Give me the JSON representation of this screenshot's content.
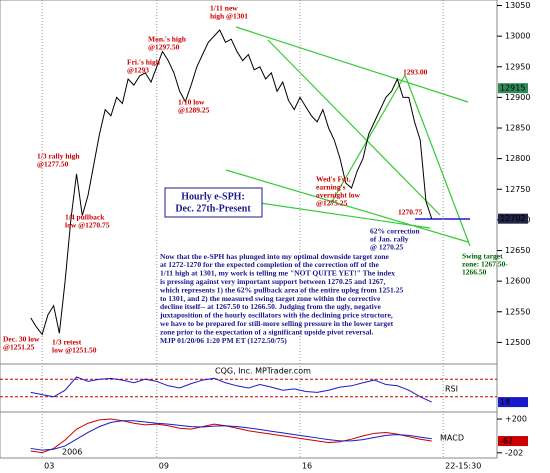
{
  "chart_data": [
    {
      "type": "line",
      "title": [
        "Hourly e-SPH:",
        "Dec. 27th-Present"
      ],
      "xlim": [
        -1,
        80
      ],
      "xticks": [
        {
          "value": 2,
          "label": "03"
        },
        {
          "value": 22,
          "label": "09"
        },
        {
          "value": 47,
          "label": "16"
        },
        {
          "value": 72,
          "label": "22-15:30"
        }
      ],
      "year_label": "2006",
      "ylim": [
        12468,
        13059
      ],
      "yticks": [
        12500,
        12550,
        12600,
        12650,
        12700,
        12750,
        12800,
        12850,
        12900,
        12950,
        13000,
        13050
      ],
      "series": [
        {
          "name": "e-SPH",
          "color": "#000000",
          "values": [
            12540,
            12525,
            12513,
            12545,
            12560,
            12515,
            12600,
            12700,
            12775,
            12707,
            12740,
            12790,
            12840,
            12880,
            12870,
            12900,
            12890,
            12930,
            12920,
            12935,
            12940,
            12925,
            12950,
            12975,
            12960,
            12940,
            12910,
            12893,
            12920,
            12950,
            12970,
            12990,
            13000,
            13010,
            12990,
            12995,
            12975,
            12960,
            12970,
            12945,
            12950,
            12930,
            12940,
            12910,
            12925,
            12895,
            12880,
            12900,
            12885,
            12870,
            12860,
            12880,
            12850,
            12830,
            12800,
            12760,
            12752,
            12780,
            12800,
            12840,
            12860,
            12880,
            12900,
            12910,
            12930,
            12900,
            12900,
            12860,
            12830,
            12730,
            12702
          ]
        }
      ],
      "price_boxes": [
        {
          "value": 12915,
          "color": "#2e8b57"
        }
      ],
      "annotations": [
        {
          "lines": [
            "1/11 new",
            "high @1301"
          ],
          "color": "#cc0000"
        },
        {
          "lines": [
            "Mon.'s high",
            "@1297.50"
          ],
          "color": "#cc0000"
        },
        {
          "lines": [
            "Fri.'s high",
            "@1293"
          ],
          "color": "#cc0000"
        },
        {
          "lines": [
            "1/10 low",
            "@1289.25"
          ],
          "color": "#cc0000"
        },
        {
          "lines": [
            "1/3 rally high",
            "@1277.50"
          ],
          "color": "#cc0000"
        },
        {
          "lines": [
            "1/4 pullback",
            "low @1270.75"
          ],
          "color": "#cc0000"
        },
        {
          "lines": [
            "Dec. 30 low",
            "@1251.25"
          ],
          "color": "#cc0000"
        },
        {
          "lines": [
            "1/3 retest",
            "low @1251.50"
          ],
          "color": "#cc0000"
        },
        {
          "lines": [
            "Wed's Fut.",
            "earning's",
            "overnight low",
            "@1275.25"
          ],
          "color": "#cc0000"
        },
        {
          "lines": [
            "1293.00"
          ],
          "color": "#cc0000"
        },
        {
          "lines": [
            "1270.75"
          ],
          "color": "#cc0000"
        },
        {
          "lines": [
            "62% correction",
            "of Jan. rally",
            "@ 1270.25"
          ],
          "color": "#1a1a8c"
        },
        {
          "lines": [
            "Swing target",
            "zone: 1267.50-",
            "1266.50"
          ],
          "color": "#006400"
        }
      ],
      "commentary": [
        "Now that the e-SPH has plunged into my optimal downside target zone",
        "at 1272-1270 for the expected completion of the correction off of the",
        "1/11 high at 1301, my work is telling me \"NOT QUITE YET!\"  The index",
        "is pressing against very important support between 1270.25 and 1267,",
        "which represents 1) the 62% pullback area of the entire upleg from 1251.25",
        "to 1301, and 2) the measured swing target zone within the corrective",
        "decline itself-- at 1267.50 to 1266.50. Judging from the ugly, negative",
        "juxtaposition of the hourly oscillators with the declining price structure,",
        "we have to be prepared for still-more selling pressure in the lower target",
        "zone prior to the expectation of a significant upside pivot reversal.",
        "MJP  01/20/06 1:20 PM ET  (1272.50/75)"
      ]
    },
    {
      "type": "line",
      "title": "RSI",
      "source": "CQG, Inc. MPTrader.com",
      "ylim": [
        0,
        100
      ],
      "levels": [
        30,
        70
      ],
      "x": [
        0,
        2,
        4,
        6,
        8,
        10,
        12,
        14,
        16,
        18,
        20,
        22,
        24,
        26,
        28,
        30,
        32,
        34,
        36,
        38,
        40,
        42,
        44,
        46,
        48,
        50,
        52,
        54,
        56,
        58,
        60,
        62,
        64,
        66,
        68,
        70
      ],
      "series": [
        {
          "name": "RSI",
          "color": "#1a1acc",
          "values": [
            40,
            35,
            30,
            45,
            75,
            65,
            70,
            72,
            68,
            62,
            70,
            65,
            55,
            50,
            60,
            68,
            72,
            62,
            55,
            50,
            58,
            52,
            45,
            48,
            42,
            40,
            45,
            52,
            55,
            62,
            68,
            58,
            55,
            45,
            30,
            18
          ]
        }
      ]
    },
    {
      "type": "line",
      "title": "MACD",
      "ylim": [
        -240,
        260
      ],
      "yticks": [
        {
          "value": 200,
          "label": "+200"
        },
        -202
      ],
      "x": [
        0,
        2,
        4,
        6,
        8,
        10,
        12,
        14,
        16,
        18,
        20,
        22,
        24,
        26,
        28,
        30,
        32,
        34,
        36,
        38,
        40,
        42,
        44,
        46,
        48,
        50,
        52,
        54,
        56,
        58,
        60,
        62,
        64,
        66,
        68,
        70
      ],
      "series": [
        {
          "name": "MACD",
          "color": "#cc0000",
          "values": [
            -180,
            -200,
            -150,
            -50,
            80,
            150,
            190,
            200,
            180,
            150,
            130,
            140,
            120,
            90,
            80,
            110,
            140,
            120,
            90,
            60,
            40,
            20,
            0,
            -20,
            -40,
            -60,
            -80,
            -70,
            -40,
            0,
            30,
            40,
            20,
            -10,
            -40,
            -62
          ]
        },
        {
          "name": "Signal",
          "color": "#1a1acc",
          "values": [
            -150,
            -170,
            -160,
            -120,
            -40,
            40,
            110,
            160,
            180,
            180,
            165,
            150,
            140,
            125,
            110,
            105,
            115,
            120,
            110,
            95,
            75,
            55,
            35,
            15,
            -5,
            -25,
            -45,
            -60,
            -60,
            -45,
            -20,
            5,
            15,
            5,
            -15,
            -35
          ]
        }
      ]
    }
  ]
}
